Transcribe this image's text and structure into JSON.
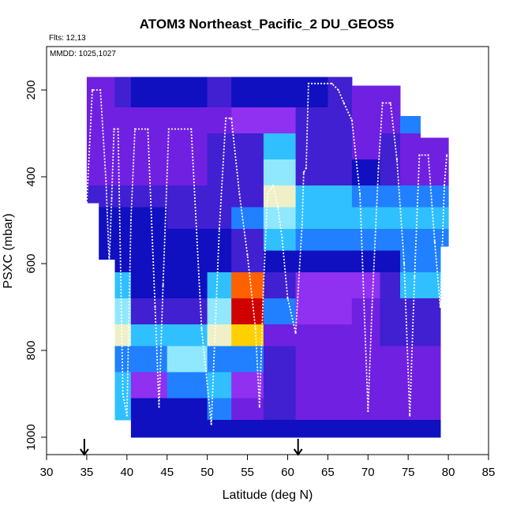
{
  "chart_data": {
    "type": "heatmap",
    "title": "ATOM3 Northeast_Pacific_2 DU_GEOS5",
    "annotations": {
      "flights": "Flts: 12,13",
      "dates": "MMDD: 1025,1027"
    },
    "xlabel": "Latitude (deg N)",
    "ylabel": "PSXC (mbar)",
    "xlim": [
      30,
      85
    ],
    "ylim": [
      1040,
      100
    ],
    "y_inverted": true,
    "x_ticks": [
      30,
      35,
      40,
      45,
      50,
      55,
      60,
      65,
      70,
      75,
      80,
      85
    ],
    "x_tick_labels": [
      "30",
      "35",
      "40",
      "45",
      "50",
      "55",
      "60",
      "65",
      "70",
      "75",
      "80",
      "85"
    ],
    "y_ticks": [
      200,
      400,
      600,
      800,
      1000
    ],
    "y_tick_labels": [
      "200",
      "400",
      "600",
      "800",
      "1000"
    ],
    "grid": false,
    "legend": "none",
    "colormap": [
      "#0000a0",
      "#1010c0",
      "#4020d0",
      "#7020e0",
      "#9030f0",
      "#2080ff",
      "#30c0ff",
      "#90e8ff",
      "#f0f0c8",
      "#ffd000",
      "#ff6000",
      "#d00000"
    ],
    "columns": [
      {
        "lat": [
          35.0,
          36.5
        ],
        "pmin": 170,
        "pmax": 460
      },
      {
        "lat": [
          36.5,
          38.5
        ],
        "pmin": 170,
        "pmax": 590
      },
      {
        "lat": [
          38.5,
          40.5
        ],
        "pmin": 170,
        "pmax": 960
      },
      {
        "lat": [
          40.5,
          45.0
        ],
        "pmin": 170,
        "pmax": 1000
      },
      {
        "lat": [
          45.0,
          50.0
        ],
        "pmin": 170,
        "pmax": 1000
      },
      {
        "lat": [
          50.0,
          53.0
        ],
        "pmin": 170,
        "pmax": 1000
      },
      {
        "lat": [
          53.0,
          57.0
        ],
        "pmin": 170,
        "pmax": 1000
      },
      {
        "lat": [
          57.0,
          61.0
        ],
        "pmin": 170,
        "pmax": 1000
      },
      {
        "lat": [
          61.0,
          65.0
        ],
        "pmin": 170,
        "pmax": 1000
      },
      {
        "lat": [
          65.0,
          68.0
        ],
        "pmin": 170,
        "pmax": 1000
      },
      {
        "lat": [
          68.0,
          71.5
        ],
        "pmin": 190,
        "pmax": 1000
      },
      {
        "lat": [
          71.5,
          74.0
        ],
        "pmin": 190,
        "pmax": 1000
      },
      {
        "lat": [
          74.0,
          76.5
        ],
        "pmin": 260,
        "pmax": 1000
      },
      {
        "lat": [
          76.5,
          79.0
        ],
        "pmin": 310,
        "pmax": 1000
      },
      {
        "lat": [
          79.0,
          80.0
        ],
        "pmin": 310,
        "pmax": 560
      }
    ],
    "layers": [
      {
        "p": [
          170,
          240
        ],
        "values": [
          3,
          3,
          2,
          1,
          1,
          2,
          1,
          1,
          1,
          2,
          3,
          3,
          1,
          1,
          1
        ]
      },
      {
        "p": [
          240,
          300
        ],
        "values": [
          3,
          3,
          3,
          3,
          3,
          3,
          4,
          4,
          2,
          2,
          3,
          3,
          5,
          5,
          5
        ]
      },
      {
        "p": [
          300,
          360
        ],
        "values": [
          3,
          3,
          3,
          3,
          3,
          2,
          2,
          6,
          2,
          2,
          3,
          2,
          3,
          3,
          3
        ]
      },
      {
        "p": [
          360,
          420
        ],
        "values": [
          3,
          3,
          3,
          3,
          3,
          2,
          2,
          7,
          2,
          2,
          1,
          2,
          3,
          3,
          3
        ]
      },
      {
        "p": [
          420,
          470
        ],
        "values": [
          2,
          2,
          2,
          2,
          2,
          2,
          2,
          8,
          6,
          6,
          5,
          5,
          5,
          5,
          5
        ]
      },
      {
        "p": [
          470,
          520
        ],
        "values": [
          1,
          1,
          1,
          1,
          2,
          2,
          5,
          7,
          6,
          6,
          6,
          6,
          6,
          6,
          6
        ]
      },
      {
        "p": [
          520,
          570
        ],
        "values": [
          1,
          1,
          1,
          1,
          1,
          1,
          2,
          6,
          5,
          5,
          5,
          5,
          5,
          5,
          5
        ]
      },
      {
        "p": [
          570,
          620
        ],
        "values": [
          1,
          1,
          1,
          1,
          1,
          1,
          2,
          1,
          1,
          1,
          1,
          1,
          5,
          5,
          1
        ]
      },
      {
        "p": [
          620,
          680
        ],
        "values": [
          1,
          5,
          6,
          1,
          1,
          6,
          10,
          2,
          4,
          4,
          4,
          2,
          6,
          6,
          1
        ]
      },
      {
        "p": [
          680,
          740
        ],
        "values": [
          1,
          5,
          7,
          2,
          2,
          7,
          11,
          5,
          4,
          4,
          3,
          2,
          2,
          2,
          1
        ]
      },
      {
        "p": [
          740,
          790
        ],
        "values": [
          1,
          1,
          8,
          6,
          6,
          8,
          9,
          3,
          3,
          3,
          3,
          2,
          2,
          2,
          1
        ]
      },
      {
        "p": [
          790,
          850
        ],
        "values": [
          1,
          1,
          5,
          5,
          7,
          5,
          5,
          2,
          3,
          3,
          3,
          3,
          3,
          3,
          1
        ]
      },
      {
        "p": [
          850,
          910
        ],
        "values": [
          1,
          1,
          6,
          4,
          5,
          6,
          4,
          2,
          3,
          3,
          3,
          3,
          3,
          3,
          1
        ]
      },
      {
        "p": [
          910,
          960
        ],
        "values": [
          1,
          1,
          6,
          1,
          1,
          5,
          3,
          2,
          3,
          3,
          3,
          3,
          3,
          3,
          1
        ]
      },
      {
        "p": [
          960,
          1000
        ],
        "values": [
          1,
          1,
          1,
          1,
          1,
          1,
          1,
          1,
          1,
          1,
          1,
          1,
          1,
          1,
          1
        ]
      }
    ],
    "flight_track": [
      {
        "lat": 35.0,
        "p": 460
      },
      {
        "lat": 35.7,
        "p": 200
      },
      {
        "lat": 36.7,
        "p": 200
      },
      {
        "lat": 37.4,
        "p": 410
      },
      {
        "lat": 37.8,
        "p": 600
      },
      {
        "lat": 38.1,
        "p": 450
      },
      {
        "lat": 38.4,
        "p": 290
      },
      {
        "lat": 38.9,
        "p": 290
      },
      {
        "lat": 39.5,
        "p": 900
      },
      {
        "lat": 40.0,
        "p": 950
      },
      {
        "lat": 40.5,
        "p": 500
      },
      {
        "lat": 41.0,
        "p": 290
      },
      {
        "lat": 42.6,
        "p": 290
      },
      {
        "lat": 43.5,
        "p": 700
      },
      {
        "lat": 44.0,
        "p": 930
      },
      {
        "lat": 44.5,
        "p": 650
      },
      {
        "lat": 45.2,
        "p": 290
      },
      {
        "lat": 48.0,
        "p": 290
      },
      {
        "lat": 49.3,
        "p": 750
      },
      {
        "lat": 50.5,
        "p": 970
      },
      {
        "lat": 51.5,
        "p": 520
      },
      {
        "lat": 52.3,
        "p": 265
      },
      {
        "lat": 53.0,
        "p": 265
      },
      {
        "lat": 54.0,
        "p": 440
      },
      {
        "lat": 55.0,
        "p": 580
      },
      {
        "lat": 56.0,
        "p": 750
      },
      {
        "lat": 56.5,
        "p": 930
      },
      {
        "lat": 57.0,
        "p": 650
      },
      {
        "lat": 57.5,
        "p": 440
      },
      {
        "lat": 58.2,
        "p": 420
      },
      {
        "lat": 58.8,
        "p": 470
      },
      {
        "lat": 59.3,
        "p": 540
      },
      {
        "lat": 60.0,
        "p": 680
      },
      {
        "lat": 61.0,
        "p": 760
      },
      {
        "lat": 61.8,
        "p": 510
      },
      {
        "lat": 62.0,
        "p": 390
      },
      {
        "lat": 62.3,
        "p": 380
      },
      {
        "lat": 62.6,
        "p": 185
      },
      {
        "lat": 65.5,
        "p": 185
      },
      {
        "lat": 66.3,
        "p": 200
      },
      {
        "lat": 67.0,
        "p": 230
      },
      {
        "lat": 68.0,
        "p": 270
      },
      {
        "lat": 69.0,
        "p": 440
      },
      {
        "lat": 70.0,
        "p": 940
      },
      {
        "lat": 70.5,
        "p": 700
      },
      {
        "lat": 71.3,
        "p": 380
      },
      {
        "lat": 71.8,
        "p": 230
      },
      {
        "lat": 72.8,
        "p": 230
      },
      {
        "lat": 73.6,
        "p": 360
      },
      {
        "lat": 74.5,
        "p": 600
      },
      {
        "lat": 75.2,
        "p": 950
      },
      {
        "lat": 75.8,
        "p": 630
      },
      {
        "lat": 76.4,
        "p": 350
      },
      {
        "lat": 77.5,
        "p": 350
      },
      {
        "lat": 78.3,
        "p": 550
      },
      {
        "lat": 79.0,
        "p": 700
      },
      {
        "lat": 79.5,
        "p": 420
      },
      {
        "lat": 79.8,
        "p": 350
      }
    ],
    "arrows": [
      {
        "lat": 34.7
      },
      {
        "lat": 61.3
      }
    ]
  }
}
